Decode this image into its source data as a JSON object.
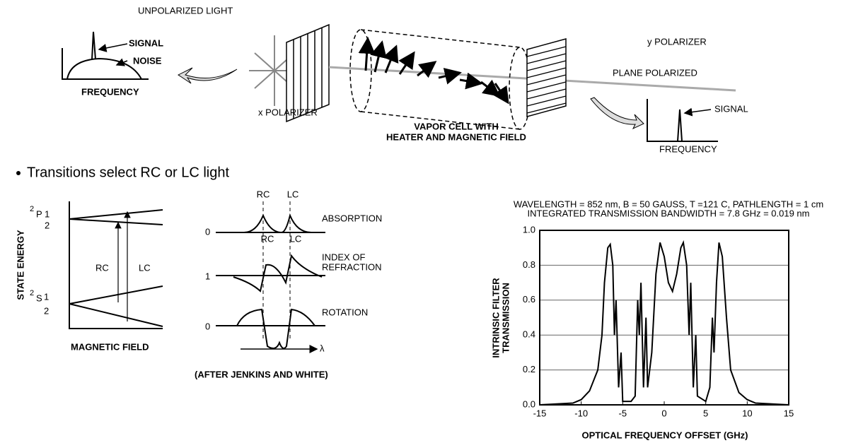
{
  "setup": {
    "unpolarized_light": "UNPOLARIZED LIGHT",
    "signal_left": "SIGNAL",
    "noise": "NOISE",
    "frequency_left": "FREQUENCY",
    "x_polarizer": "x POLARIZER",
    "vapor_cell": [
      "VAPOR CELL WITH",
      "HEATER AND MAGNETIC FIELD"
    ],
    "y_polarizer": "y POLARIZER",
    "plane_polarized": "PLANE POLARIZED",
    "signal_right": "SIGNAL",
    "frequency_right": "FREQUENCY"
  },
  "bullet": "Transitions select RC or LC light",
  "energy": {
    "y_label": "STATE ENERGY",
    "upper": {
      "sup": "2",
      "letter": "P",
      "num": "1",
      "den": "2"
    },
    "lower": {
      "sup": "2",
      "letter": "S",
      "num": "1",
      "den": "2"
    },
    "rc": "RC",
    "lc": "LC",
    "x_label": "MAGNETIC FIELD"
  },
  "profiles": {
    "rc_top": "RC",
    "lc_top": "LC",
    "rc_mid": "RC",
    "lc_mid": "LC",
    "absorption": "ABSORPTION",
    "index": [
      "INDEX OF",
      "REFRACTION"
    ],
    "rotation": "ROTATION",
    "baselines": [
      0,
      1,
      0
    ],
    "lambda": "λ",
    "credit": "(AFTER JENKINS AND WHITE)"
  },
  "chart_data": {
    "type": "line",
    "title": "WAVELENGTH = 852 nm, B = 50 GAUSS, T =121 C, PATHLENGTH = 1 cm",
    "subtitle": "INTEGRATED TRANSMISSION BANDWIDTH = 7.8 GHz = 0.019 nm",
    "ylabel": [
      "INTRINSIC FILTER",
      "TRANSMISSION"
    ],
    "xlabel": "OPTICAL FREQUENCY OFFSET (GHz)",
    "x": [
      -15,
      -11,
      -10,
      -9,
      -8,
      -7.5,
      -7.2,
      -6.8,
      -6.5,
      -6.2,
      -6,
      -5.8,
      -5.5,
      -5.2,
      -5,
      -4,
      -3.5,
      -3.2,
      -3,
      -2.8,
      -2.5,
      -2.2,
      -2,
      -1.5,
      -1,
      -0.5,
      0,
      0.5,
      1,
      1.5,
      2,
      2.3,
      2.7,
      3,
      3.2,
      3.5,
      3.8,
      4,
      5,
      5.5,
      5.8,
      6,
      6.3,
      6.6,
      7,
      7.5,
      8,
      9,
      10,
      11,
      15
    ],
    "values": [
      0,
      0.01,
      0.03,
      0.08,
      0.2,
      0.4,
      0.7,
      0.9,
      0.92,
      0.8,
      0.4,
      0.6,
      0.1,
      0.3,
      0.02,
      0.02,
      0.05,
      0.6,
      0.4,
      0.7,
      0.1,
      0.5,
      0.1,
      0.3,
      0.75,
      0.93,
      0.85,
      0.7,
      0.65,
      0.75,
      0.9,
      0.93,
      0.8,
      0.4,
      0.7,
      0.1,
      0.4,
      0.05,
      0.02,
      0.1,
      0.5,
      0.3,
      0.7,
      0.93,
      0.85,
      0.5,
      0.2,
      0.07,
      0.03,
      0.01,
      0
    ],
    "color": "#000000",
    "xlim": [
      -15,
      15
    ],
    "xticks": [
      -15,
      -10,
      -5,
      0,
      5,
      10,
      15
    ],
    "ylim": [
      0,
      1
    ],
    "yticks": [
      {
        "value": 0,
        "label": "0.0"
      },
      0.2,
      0.4,
      0.6,
      0.8,
      {
        "value": 1,
        "label": "1.0"
      }
    ],
    "grid": true
  }
}
